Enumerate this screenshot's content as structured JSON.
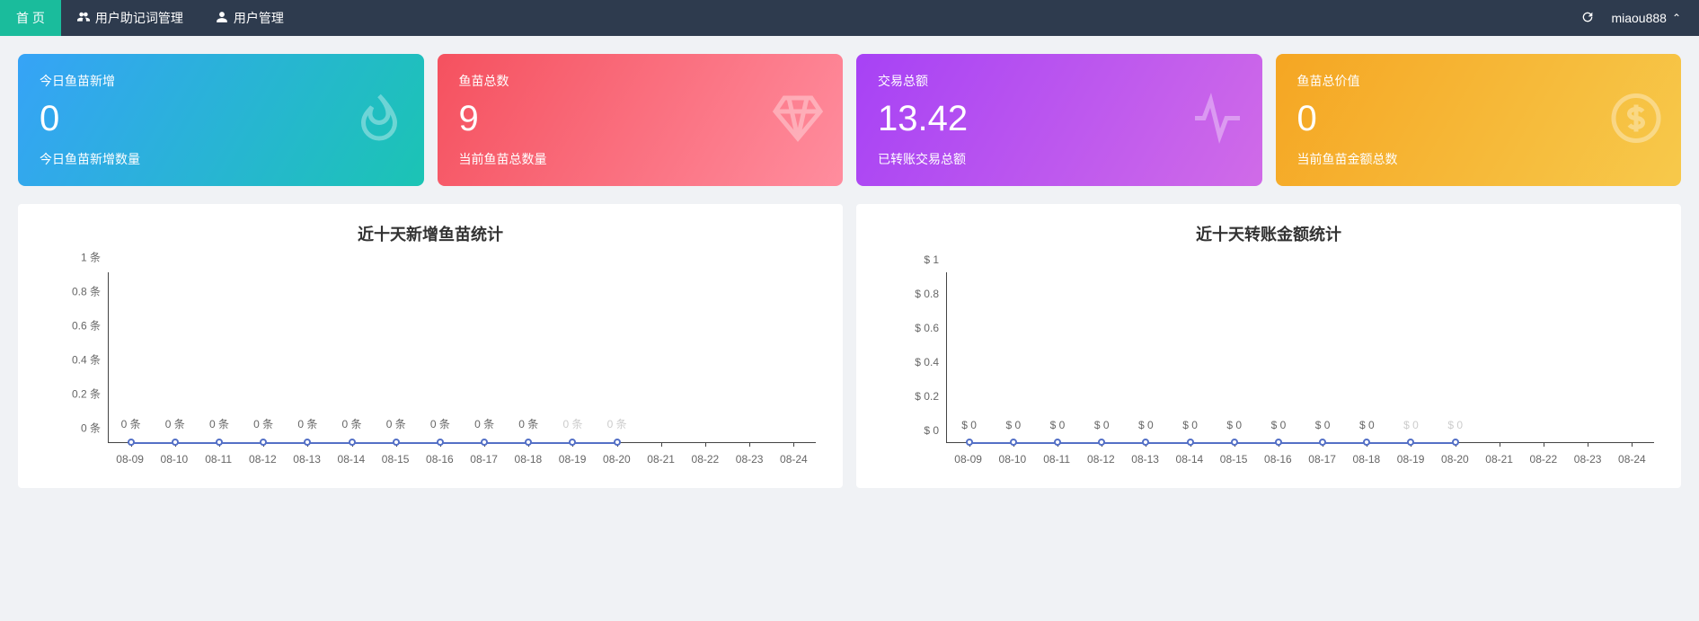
{
  "nav": {
    "items": [
      {
        "label": "首 页",
        "icon": "none",
        "active": true
      },
      {
        "label": "用户助记词管理",
        "icon": "users",
        "active": false
      },
      {
        "label": "用户管理",
        "icon": "user",
        "active": false
      }
    ],
    "refresh_icon": "refresh-icon",
    "username": "miaou888"
  },
  "cards": [
    {
      "title": "今日鱼苗新增",
      "value": "0",
      "subtitle": "今日鱼苗新增数量",
      "gradient": [
        "#36a3f7",
        "#1bc4b4"
      ],
      "icon": "flame"
    },
    {
      "title": "鱼苗总数",
      "value": "9",
      "subtitle": "当前鱼苗总数量",
      "gradient": [
        "#f5515f",
        "#ff8d9e"
      ],
      "icon": "diamond"
    },
    {
      "title": "交易总额",
      "value": "13.42",
      "subtitle": "已转账交易总额",
      "gradient": [
        "#a742f5",
        "#d06be8"
      ],
      "icon": "pulse"
    },
    {
      "title": "鱼苗总价值",
      "value": "0",
      "subtitle": "当前鱼苗金额总数",
      "gradient": [
        "#f5a623",
        "#f7c94b"
      ],
      "icon": "dollar"
    }
  ],
  "charts": [
    {
      "title": "近十天新增鱼苗统计",
      "y_unit_suffix": " 条",
      "y_ticks": [
        "0",
        "0.2",
        "0.4",
        "0.6",
        "0.8",
        "1"
      ],
      "ylim": [
        0,
        1
      ],
      "x_labels": [
        "08-09",
        "08-10",
        "08-11",
        "08-12",
        "08-13",
        "08-14",
        "08-15",
        "08-16",
        "08-17",
        "08-18",
        "08-19",
        "08-20",
        "08-21",
        "08-22",
        "08-23",
        "08-24"
      ],
      "points": [
        0,
        0,
        0,
        0,
        0,
        0,
        0,
        0,
        0,
        0,
        0,
        0
      ],
      "point_label_prefix": "",
      "point_label_suffix": " 条",
      "line_color": "#5470c6",
      "faded_after": 9
    },
    {
      "title": "近十天转账金额统计",
      "y_unit_prefix": "$ ",
      "y_ticks": [
        "0",
        "0.2",
        "0.4",
        "0.6",
        "0.8",
        "1"
      ],
      "ylim": [
        0,
        1
      ],
      "x_labels": [
        "08-09",
        "08-10",
        "08-11",
        "08-12",
        "08-13",
        "08-14",
        "08-15",
        "08-16",
        "08-17",
        "08-18",
        "08-19",
        "08-20",
        "08-21",
        "08-22",
        "08-23",
        "08-24"
      ],
      "points": [
        0,
        0,
        0,
        0,
        0,
        0,
        0,
        0,
        0,
        0,
        0,
        0
      ],
      "point_label_prefix": "$ ",
      "point_label_suffix": "",
      "line_color": "#5470c6",
      "faded_after": 9
    }
  ],
  "colors": {
    "topbar_bg": "#2e3b4e",
    "active_tab": "#1abc9c",
    "page_bg": "#f0f2f5",
    "axis": "#444444",
    "tick_text": "#666666"
  }
}
